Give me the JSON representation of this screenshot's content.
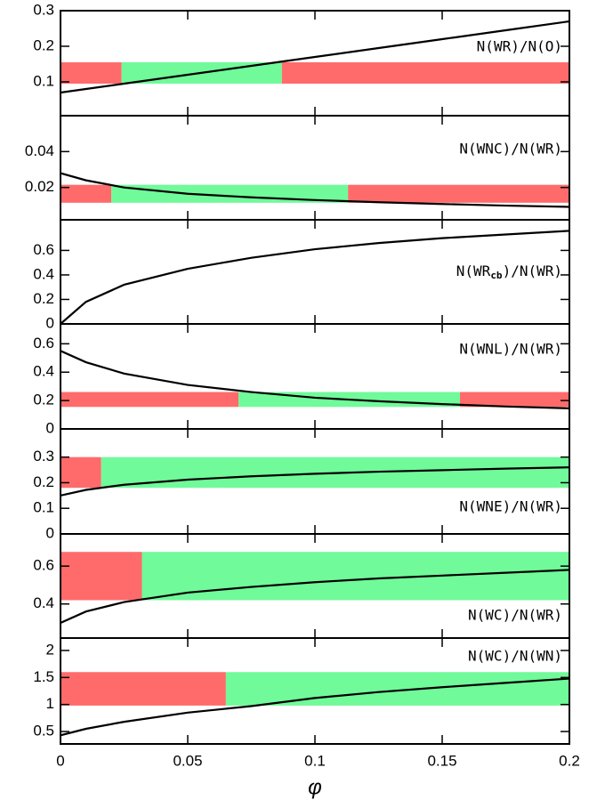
{
  "chart_data": [
    {
      "type": "line",
      "annotation": "N(WR)/N(O)",
      "xlim": [
        0,
        0.2
      ],
      "xticks": [
        0,
        0.05,
        0.1,
        0.15,
        0.2
      ],
      "ylim": [
        0.005,
        0.3
      ],
      "yticks": [
        0.1,
        0.2,
        0.3
      ],
      "x": [
        0,
        0.01,
        0.025,
        0.05,
        0.075,
        0.1,
        0.125,
        0.15,
        0.175,
        0.2
      ],
      "series": [
        {
          "color": "#000000",
          "values": [
            0.07,
            0.08,
            0.095,
            0.12,
            0.145,
            0.17,
            0.195,
            0.22,
            0.245,
            0.27
          ]
        }
      ],
      "bands": {
        "y": [
          0.095,
          0.155
        ],
        "segments": [
          {
            "x": [
              0,
              0.024
            ],
            "color": "#ff6b6b"
          },
          {
            "x": [
              0.024,
              0.087
            ],
            "color": "#70fa9a"
          },
          {
            "x": [
              0.087,
              0.2
            ],
            "color": "#ff6b6b"
          }
        ]
      }
    },
    {
      "type": "line",
      "annotation": "N(WNC)/N(WR)",
      "xlim": [
        0,
        0.2
      ],
      "xticks": [
        0,
        0.05,
        0.1,
        0.15,
        0.2
      ],
      "ylim": [
        0.002,
        0.06
      ],
      "yticks": [
        0.02,
        0.04
      ],
      "x": [
        0,
        0.01,
        0.025,
        0.05,
        0.075,
        0.1,
        0.125,
        0.15,
        0.175,
        0.2
      ],
      "series": [
        {
          "color": "#000000",
          "values": [
            0.028,
            0.024,
            0.02,
            0.0165,
            0.0145,
            0.013,
            0.0118,
            0.0108,
            0.0099,
            0.0092
          ]
        }
      ],
      "bands": {
        "y": [
          0.0115,
          0.0215
        ],
        "segments": [
          {
            "x": [
              0,
              0.02
            ],
            "color": "#ff6b6b"
          },
          {
            "x": [
              0.02,
              0.113
            ],
            "color": "#70fa9a"
          },
          {
            "x": [
              0.113,
              0.2
            ],
            "color": "#ff6b6b"
          }
        ]
      }
    },
    {
      "type": "line",
      "annotation": [
        "N(WR",
        "cb",
        ")/N(WR)"
      ],
      "xlim": [
        0,
        0.2
      ],
      "xticks": [
        0,
        0.05,
        0.1,
        0.15,
        0.2
      ],
      "ylim": [
        0,
        0.85
      ],
      "yticks": [
        0,
        0.2,
        0.4,
        0.6
      ],
      "x": [
        0,
        0.01,
        0.025,
        0.05,
        0.075,
        0.1,
        0.125,
        0.15,
        0.175,
        0.2
      ],
      "series": [
        {
          "color": "#000000",
          "values": [
            0,
            0.18,
            0.32,
            0.45,
            0.54,
            0.61,
            0.66,
            0.7,
            0.73,
            0.76
          ]
        }
      ]
    },
    {
      "type": "line",
      "annotation": "N(WNL)/N(WR)",
      "xlim": [
        0,
        0.2
      ],
      "xticks": [
        0,
        0.05,
        0.1,
        0.15,
        0.2
      ],
      "ylim": [
        0,
        0.74
      ],
      "yticks": [
        0,
        0.2,
        0.4,
        0.6
      ],
      "x": [
        0,
        0.01,
        0.025,
        0.05,
        0.075,
        0.1,
        0.125,
        0.15,
        0.175,
        0.2
      ],
      "series": [
        {
          "color": "#000000",
          "values": [
            0.55,
            0.47,
            0.39,
            0.31,
            0.26,
            0.22,
            0.195,
            0.175,
            0.158,
            0.145
          ]
        }
      ],
      "bands": {
        "y": [
          0.155,
          0.26
        ],
        "segments": [
          {
            "x": [
              0,
              0.07
            ],
            "color": "#ff6b6b"
          },
          {
            "x": [
              0.07,
              0.157
            ],
            "color": "#70fa9a"
          },
          {
            "x": [
              0.157,
              0.2
            ],
            "color": "#ff6b6b"
          }
        ]
      }
    },
    {
      "type": "line",
      "annotation": "N(WNE)/N(WR)",
      "xlim": [
        0,
        0.2
      ],
      "xticks": [
        0,
        0.05,
        0.1,
        0.15,
        0.2
      ],
      "ylim": [
        0,
        0.41
      ],
      "yticks": [
        0,
        0.1,
        0.2,
        0.3
      ],
      "x": [
        0,
        0.01,
        0.025,
        0.05,
        0.075,
        0.1,
        0.125,
        0.15,
        0.175,
        0.2
      ],
      "series": [
        {
          "color": "#000000",
          "values": [
            0.15,
            0.172,
            0.192,
            0.212,
            0.225,
            0.235,
            0.243,
            0.249,
            0.255,
            0.26
          ]
        }
      ],
      "bands": {
        "y": [
          0.18,
          0.3
        ],
        "segments": [
          {
            "x": [
              0,
              0.016
            ],
            "color": "#ff6b6b"
          },
          {
            "x": [
              0.016,
              0.2
            ],
            "color": "#70fa9a"
          }
        ]
      }
    },
    {
      "type": "line",
      "annotation": "N(WC)/N(WR)",
      "xlim": [
        0,
        0.2
      ],
      "xticks": [
        0,
        0.05,
        0.1,
        0.15,
        0.2
      ],
      "ylim": [
        0.22,
        0.77
      ],
      "yticks": [
        0.4,
        0.6
      ],
      "x": [
        0,
        0.01,
        0.025,
        0.05,
        0.075,
        0.1,
        0.125,
        0.15,
        0.175,
        0.2
      ],
      "series": [
        {
          "color": "#000000",
          "values": [
            0.3,
            0.36,
            0.41,
            0.46,
            0.49,
            0.515,
            0.535,
            0.55,
            0.565,
            0.58
          ]
        }
      ],
      "bands": {
        "y": [
          0.42,
          0.675
        ],
        "segments": [
          {
            "x": [
              0,
              0.032
            ],
            "color": "#ff6b6b"
          },
          {
            "x": [
              0.032,
              0.2
            ],
            "color": "#70fa9a"
          }
        ]
      }
    },
    {
      "type": "line",
      "annotation": "N(WC)/N(WN)",
      "xlabel": "φ",
      "xlim": [
        0,
        0.2
      ],
      "xticks": [
        0,
        0.05,
        0.1,
        0.15,
        0.2
      ],
      "ylim": [
        0.27,
        2.23
      ],
      "yticks": [
        0.5,
        1,
        1.5,
        2
      ],
      "x": [
        0,
        0.01,
        0.025,
        0.05,
        0.075,
        0.1,
        0.125,
        0.15,
        0.175,
        0.2
      ],
      "series": [
        {
          "color": "#000000",
          "values": [
            0.43,
            0.55,
            0.68,
            0.85,
            0.97,
            1.12,
            1.23,
            1.32,
            1.4,
            1.48
          ]
        }
      ],
      "bands": {
        "y": [
          0.98,
          1.6
        ],
        "segments": [
          {
            "x": [
              0,
              0.065
            ],
            "color": "#ff6b6b"
          },
          {
            "x": [
              0.065,
              0.2
            ],
            "color": "#70fa9a"
          }
        ]
      }
    }
  ]
}
